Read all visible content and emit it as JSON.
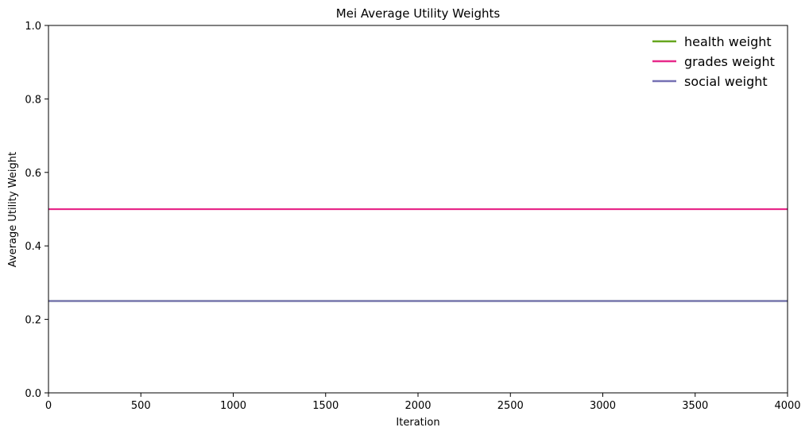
{
  "chart_data": {
    "type": "line",
    "title": "Mei Average Utility Weights",
    "xlabel": "Iteration",
    "ylabel": "Average Utility Weight",
    "xlim": [
      0,
      4000
    ],
    "ylim": [
      0,
      1
    ],
    "xticks": [
      0,
      500,
      1000,
      1500,
      2000,
      2500,
      3000,
      3500,
      4000
    ],
    "yticks": [
      0.0,
      0.2,
      0.4,
      0.6,
      0.8,
      1.0
    ],
    "xtick_labels": [
      "0",
      "500",
      "1000",
      "1500",
      "2000",
      "2500",
      "3000",
      "3500",
      "4000"
    ],
    "ytick_labels": [
      "0.0",
      "0.2",
      "0.4",
      "0.6",
      "0.8",
      "1.0"
    ],
    "grid": false,
    "legend_position": "top-right",
    "series": [
      {
        "name": "health weight",
        "color": "#66a61e",
        "x": [
          0,
          4000
        ],
        "y": [
          0.25,
          0.25
        ]
      },
      {
        "name": "grades weight",
        "color": "#e7298a",
        "x": [
          0,
          4000
        ],
        "y": [
          0.5,
          0.5
        ]
      },
      {
        "name": "social weight",
        "color": "#7570b3",
        "x": [
          0,
          4000
        ],
        "y": [
          0.25,
          0.25
        ]
      }
    ]
  }
}
